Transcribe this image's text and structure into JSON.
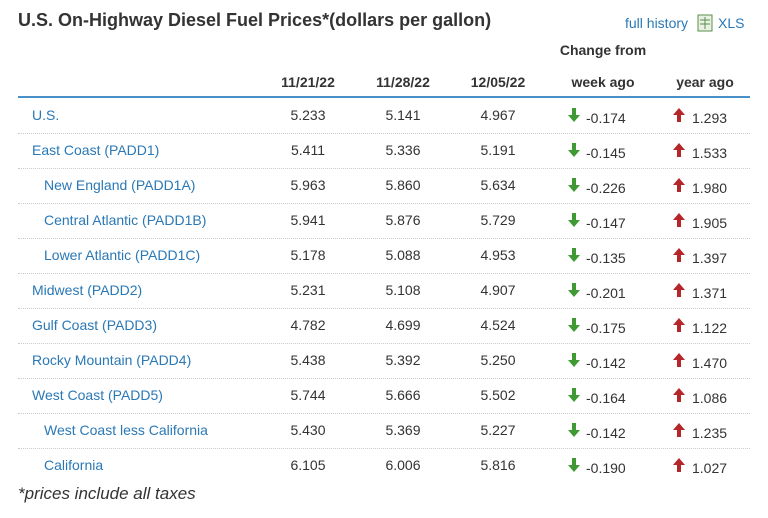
{
  "title": "U.S. On-Highway Diesel Fuel Prices*(dollars per gallon)",
  "links": [
    "full history",
    "XLS"
  ],
  "table": {
    "header_group": "Change from",
    "columns": [
      "11/21/22",
      "11/28/22",
      "12/05/22",
      "week ago",
      "year ago"
    ],
    "rows": [
      {
        "name": "U.S.",
        "values": [
          "5.233",
          "5.141",
          "4.967"
        ],
        "week_change": "-0.174",
        "year_change": "1.293"
      },
      {
        "name": "East Coast (PADD1)",
        "values": [
          "5.411",
          "5.336",
          "5.191"
        ],
        "week_change": "-0.145",
        "year_change": "1.533",
        "subregions": [
          {
            "name": "New England (PADD1A)",
            "values": [
              "5.963",
              "5.860",
              "5.634"
            ],
            "week_change": "-0.226",
            "year_change": "1.980"
          },
          {
            "name": "Central Atlantic (PADD1B)",
            "values": [
              "5.941",
              "5.876",
              "5.729"
            ],
            "week_change": "-0.147",
            "year_change": "1.905"
          },
          {
            "name": "Lower Atlantic (PADD1C)",
            "values": [
              "5.178",
              "5.088",
              "4.953"
            ],
            "week_change": "-0.135",
            "year_change": "1.397"
          }
        ]
      },
      {
        "name": "Midwest (PADD2)",
        "values": [
          "5.231",
          "5.108",
          "4.907"
        ],
        "week_change": "-0.201",
        "year_change": "1.371"
      },
      {
        "name": "Gulf Coast (PADD3)",
        "values": [
          "4.782",
          "4.699",
          "4.524"
        ],
        "week_change": "-0.175",
        "year_change": "1.122"
      },
      {
        "name": "Rocky Mountain (PADD4)",
        "values": [
          "5.438",
          "5.392",
          "5.250"
        ],
        "week_change": "-0.142",
        "year_change": "1.470"
      },
      {
        "name": "West Coast (PADD5)",
        "values": [
          "5.744",
          "5.666",
          "5.502"
        ],
        "week_change": "-0.164",
        "year_change": "1.086",
        "subregions": [
          {
            "name": "West Coast less California",
            "values": [
              "5.430",
              "5.369",
              "5.227"
            ],
            "week_change": "-0.142",
            "year_change": "1.235"
          },
          {
            "name": "California",
            "values": [
              "6.105",
              "6.006",
              "5.816"
            ],
            "week_change": "-0.190",
            "year_change": "1.027"
          }
        ]
      }
    ]
  },
  "footnote": "*prices include all taxes"
}
